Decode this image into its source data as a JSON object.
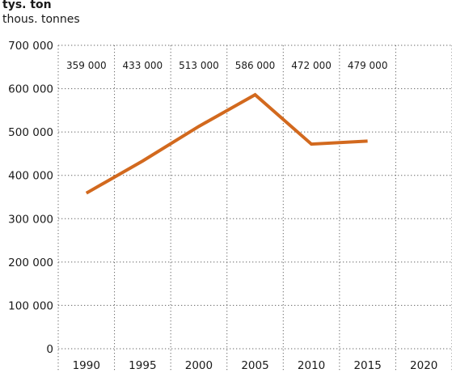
{
  "chart_data": {
    "type": "line",
    "title": "tys. ton",
    "subtitle": "thous. tonnes",
    "x": [
      1990,
      1995,
      2000,
      2005,
      2010,
      2015
    ],
    "series": [
      {
        "values": [
          359000,
          433000,
          513000,
          586000,
          472000,
          479000
        ]
      }
    ],
    "value_labels": [
      "359 000",
      "433 000",
      "513 000",
      "586 000",
      "472 000",
      "479 000"
    ],
    "xticks": [
      "1990",
      "1995",
      "2000",
      "2005",
      "2010",
      "2015",
      "2020"
    ],
    "yticks": [
      "0",
      "100 000",
      "200 000",
      "300 000",
      "400 000",
      "500 000",
      "600 000",
      "700 000"
    ],
    "ylim": [
      0,
      700000
    ],
    "xlim": [
      1987.5,
      2022.5
    ],
    "grid": true,
    "line_color": "#d2691e",
    "grid_color": "#666666"
  }
}
